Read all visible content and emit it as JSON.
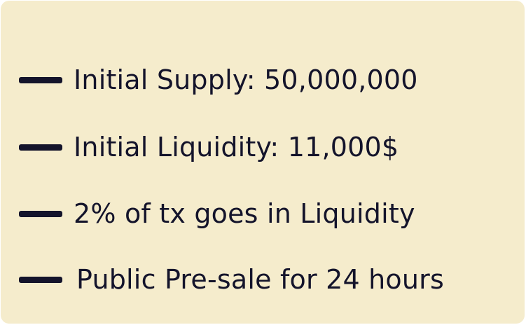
{
  "info_card": {
    "items": [
      {
        "text": "Initial Supply: 50,000,000"
      },
      {
        "text": "Initial Liquidity: 11,000$"
      },
      {
        "text": "2% of tx goes in Liquidity"
      },
      {
        "text": "Public Pre-sale for 24 hours"
      }
    ]
  },
  "colors": {
    "background": "#f5eccc",
    "text": "#14142b",
    "bullet": "#14142b"
  }
}
